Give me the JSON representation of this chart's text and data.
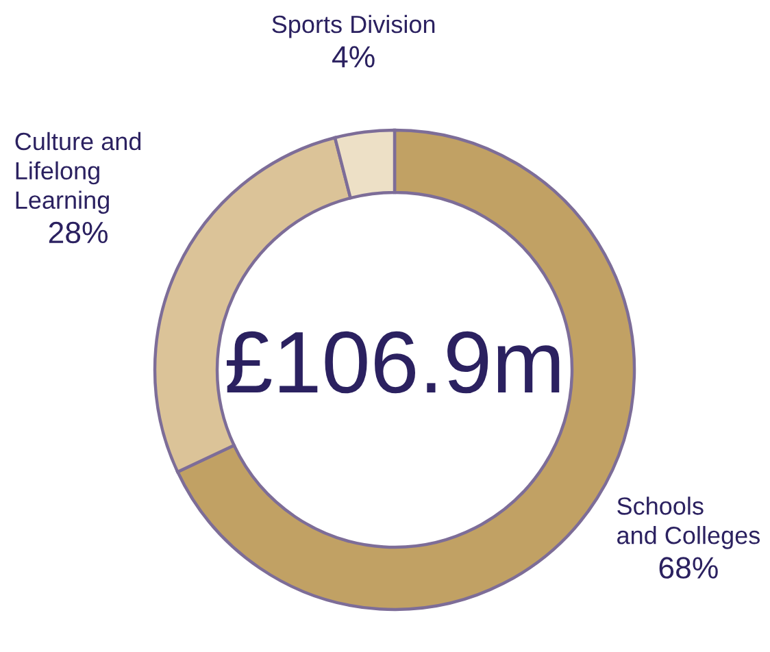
{
  "chart_data": {
    "type": "donut",
    "categories": [
      "Schools\nand Colleges",
      "Culture and\nLifelong\nLearning",
      "Sports Division"
    ],
    "values": [
      68,
      28,
      4
    ],
    "value_labels": [
      "68%",
      "28%",
      "4%"
    ],
    "colors": [
      "#c1a164",
      "#dbc398",
      "#ede0c6"
    ],
    "annotations": [
      "£106.9m"
    ],
    "legend": false
  }
}
